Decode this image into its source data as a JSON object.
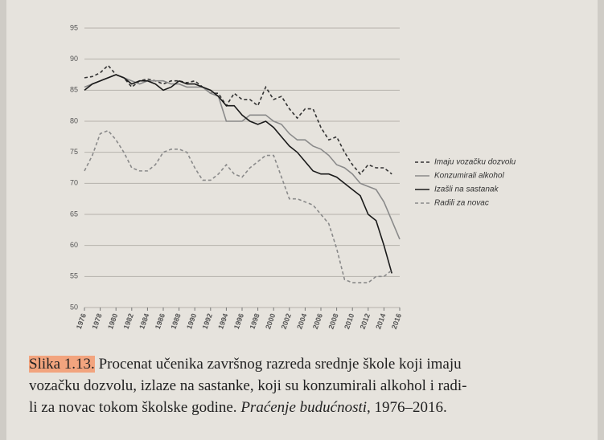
{
  "chart_data": {
    "type": "line",
    "x": [
      1976,
      1977,
      1978,
      1979,
      1980,
      1981,
      1982,
      1983,
      1984,
      1985,
      1986,
      1987,
      1988,
      1989,
      1990,
      1991,
      1992,
      1993,
      1994,
      1995,
      1996,
      1997,
      1998,
      1999,
      2000,
      2001,
      2002,
      2003,
      2004,
      2005,
      2006,
      2007,
      2008,
      2009,
      2010,
      2011,
      2012,
      2013,
      2014,
      2015,
      2016
    ],
    "series": [
      {
        "name": "Imaju vozačku dozvolu",
        "color": "#333333",
        "dashed": true,
        "values": [
          87,
          87.2,
          87.8,
          89,
          87.5,
          87,
          85.5,
          86.5,
          86.8,
          86.5,
          86,
          86.5,
          86.5,
          86.2,
          86.5,
          85.5,
          84.5,
          84.5,
          82.5,
          84.5,
          83.5,
          83.5,
          82.5,
          85.5,
          83.5,
          84,
          82,
          80.5,
          82,
          82,
          79,
          77,
          77.5,
          75,
          73,
          71.5,
          73,
          72.5,
          72.5,
          71.5,
          null
        ]
      },
      {
        "name": "Konzumirali alkohol",
        "color": "#8a8a8a",
        "dashed": false,
        "values": [
          85.5,
          86,
          86.5,
          87,
          87.5,
          87,
          86.5,
          86,
          86.5,
          86.5,
          86.5,
          86,
          86,
          85.5,
          85.5,
          85.5,
          84.5,
          84,
          80,
          80,
          80,
          81,
          81,
          81,
          80,
          79.5,
          78,
          77,
          77,
          76,
          75.5,
          74.5,
          73,
          72.5,
          71.5,
          70,
          69.5,
          69,
          67,
          64,
          61
        ]
      },
      {
        "name": "Izašli na sastanak",
        "color": "#1a1a1a",
        "dashed": false,
        "values": [
          85,
          86,
          86.5,
          87,
          87.5,
          87,
          86,
          86.5,
          86.5,
          86,
          85,
          85.5,
          86.5,
          86,
          86,
          85.5,
          85,
          84,
          82.5,
          82.5,
          81,
          80,
          79.5,
          80,
          79,
          77.5,
          76,
          75,
          73.5,
          72,
          71.5,
          71.5,
          71,
          70,
          69,
          68,
          65,
          64,
          60,
          55.5,
          null
        ]
      },
      {
        "name": "Radili za novac",
        "color": "#8a8a8a",
        "dashed": true,
        "values": [
          72,
          74.5,
          78,
          78.5,
          77,
          75,
          72.5,
          72,
          72,
          73,
          75,
          75.5,
          75.5,
          75,
          72.5,
          70.5,
          70.5,
          71.5,
          73,
          71.5,
          71,
          72.5,
          73.5,
          74.5,
          74.5,
          71,
          67.5,
          67.5,
          67,
          66.5,
          65,
          63.5,
          59.5,
          54.5,
          54,
          54,
          54,
          55,
          55,
          56,
          null
        ]
      }
    ],
    "xlim": [
      1976,
      2016
    ],
    "xticks": [
      1976,
      1978,
      1980,
      1982,
      1984,
      1986,
      1988,
      1990,
      1992,
      1994,
      1996,
      1998,
      2000,
      2002,
      2004,
      2006,
      2008,
      2010,
      2012,
      2014,
      2016
    ],
    "ylim": [
      50,
      95
    ],
    "yticks": [
      50,
      55,
      60,
      65,
      70,
      75,
      80,
      85,
      90,
      95
    ],
    "grid": true
  },
  "caption": {
    "label": "Slika 1.13.",
    "line1": "Procenat učenika završnog razreda srednje škole koji imaju",
    "line2": "vozačku dozvolu, izlaze na sastanke, koji su konzumirali alkohol i radi-",
    "line3a": "li za novac tokom školske godine.",
    "line3b": "Praćenje budućnosti",
    "line3c": ", 1976–2016."
  }
}
